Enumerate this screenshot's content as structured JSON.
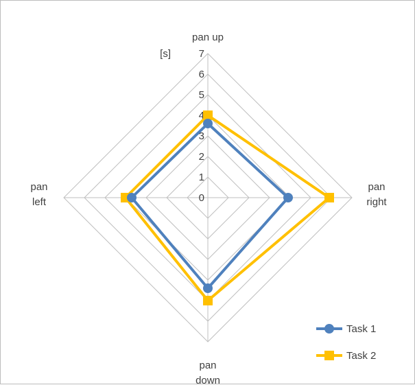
{
  "chart_data": {
    "type": "radar",
    "unit_label": "[s]",
    "axes": [
      {
        "key": "up",
        "label_lines": [
          "pan up"
        ]
      },
      {
        "key": "right",
        "label_lines": [
          "pan",
          "right"
        ]
      },
      {
        "key": "down",
        "label_lines": [
          "pan",
          "down"
        ]
      },
      {
        "key": "left",
        "label_lines": [
          "pan",
          "left"
        ]
      }
    ],
    "scale": {
      "min": 0,
      "max": 7,
      "step": 1
    },
    "tick_labels": [
      "0",
      "1",
      "2",
      "3",
      "4",
      "5",
      "6",
      "7"
    ],
    "grid": true,
    "legend_position": "bottom-right",
    "series": [
      {
        "name": "Task 1",
        "color": "#4F81BD",
        "marker": "circle",
        "values": {
          "up": 3.6,
          "right": 3.9,
          "down": 4.4,
          "left": 3.7
        }
      },
      {
        "name": "Task 2",
        "color": "#FFC000",
        "marker": "square",
        "values": {
          "up": 4.0,
          "right": 5.9,
          "down": 5.0,
          "left": 4.0
        }
      }
    ]
  }
}
